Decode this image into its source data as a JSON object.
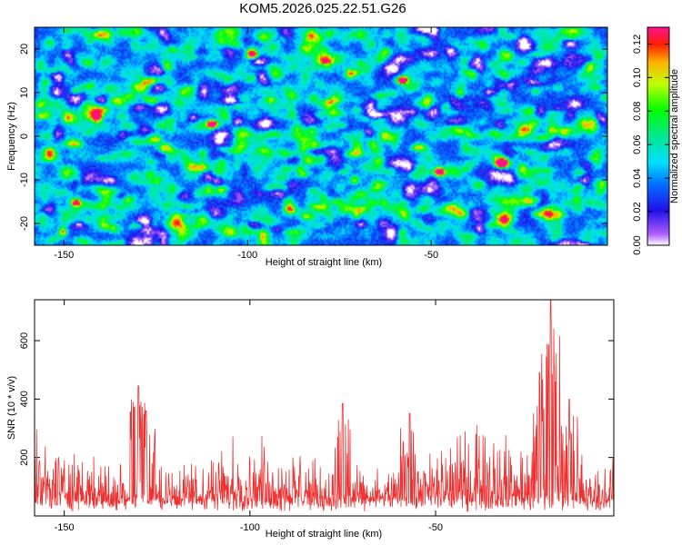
{
  "title": "KOM5.2026.025.22.51.G26",
  "chart_data": [
    {
      "type": "heatmap",
      "xlabel": "Height of straight line (km)",
      "ylabel": "Frequency (Hz)",
      "xlim": [
        -158,
        -2
      ],
      "ylim": [
        -25,
        25
      ],
      "xticks": [
        -150,
        -100,
        -50
      ],
      "xtick_labels": [
        "-150",
        "-100",
        "-50"
      ],
      "yticks": [
        -20,
        -10,
        0,
        10,
        20
      ],
      "ytick_labels": [
        "-20",
        "-10",
        "0",
        "10",
        "20"
      ],
      "colorbar": {
        "label": "Normalized spectral amplitude",
        "range": [
          0,
          0.13
        ],
        "ticks": [
          0,
          0.02,
          0.04,
          0.06,
          0.08,
          0.1,
          0.12
        ],
        "tick_labels": [
          "0.00",
          "0.02",
          "0.04",
          "0.06",
          "0.08",
          "0.10",
          "0.12"
        ]
      },
      "peaks": [
        {
          "x": -48,
          "y": -8,
          "value": 0.13
        },
        {
          "x": -31,
          "y": -6,
          "value": 0.13
        },
        {
          "x": -110,
          "y": 3,
          "value": 0.12
        },
        {
          "x": -147,
          "y": -15,
          "value": 0.1
        },
        {
          "x": -58,
          "y": 13,
          "value": 0.09
        },
        {
          "x": -99,
          "y": 19,
          "value": 0.09
        }
      ]
    },
    {
      "type": "line",
      "xlabel": "Height of straight line (km)",
      "ylabel": "SNR (10 * v/v)",
      "xlim": [
        -158,
        -2
      ],
      "ylim": [
        0,
        740
      ],
      "xticks": [
        -150,
        -100,
        -50
      ],
      "xtick_labels": [
        "-150",
        "-100",
        "-50"
      ],
      "yticks": [
        200,
        400,
        600
      ],
      "ytick_labels": [
        "200",
        "400",
        "600"
      ],
      "series": [
        {
          "name": "SNR",
          "color": "#ee3030",
          "baseline_level": 110,
          "noise_amplitude": 180,
          "features": [
            {
              "x": -130,
              "value": 445
            },
            {
              "x": -128,
              "value": 360
            },
            {
              "x": -75,
              "value": 385
            },
            {
              "x": -57,
              "value": 350
            },
            {
              "x": -22,
              "value": 490
            },
            {
              "x": -19,
              "value": 740
            },
            {
              "x": -14,
              "value": 400
            }
          ]
        }
      ]
    }
  ]
}
